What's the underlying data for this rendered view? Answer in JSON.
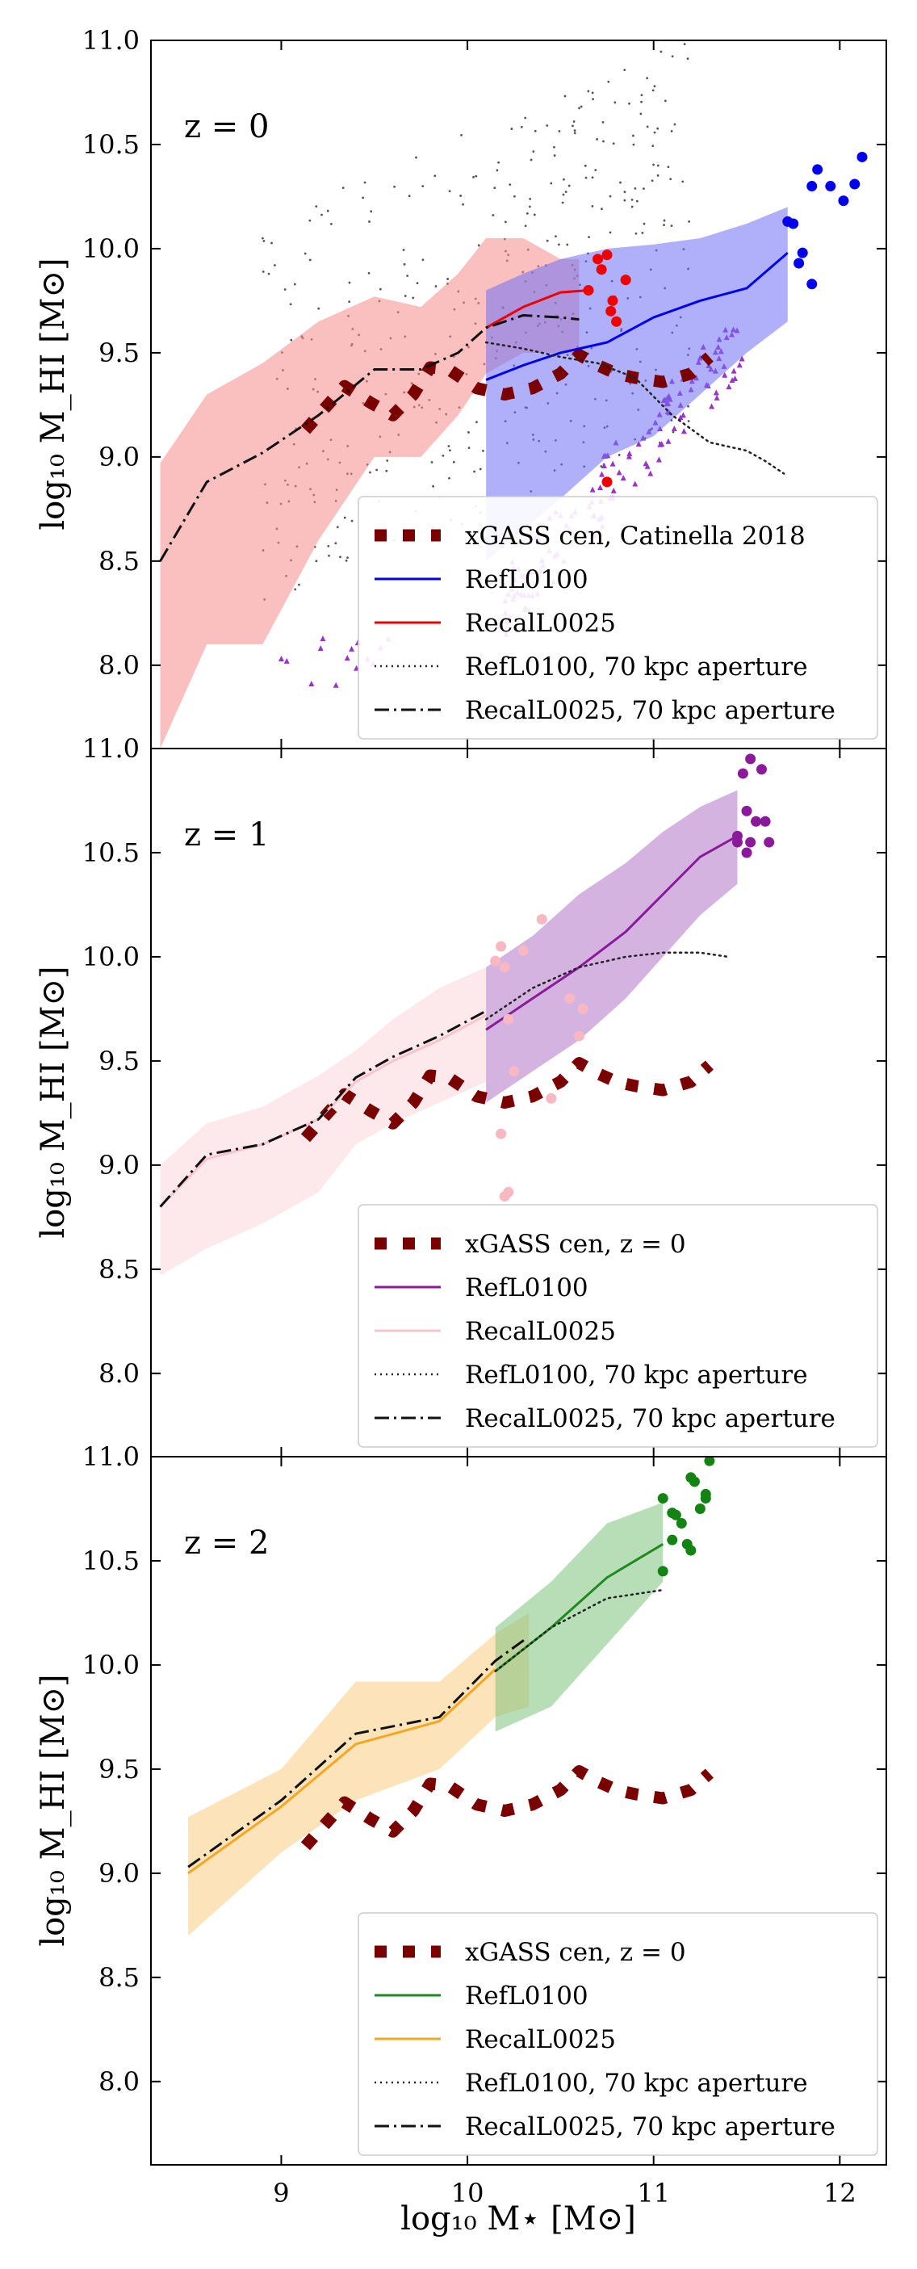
{
  "figure": {
    "xlabel": "log₁₀ M⋆ [M⊙]",
    "ylabel": "log₁₀ M_HI [M⊙]",
    "xlim": [
      8.3,
      12.25
    ],
    "ylim": [
      7.6,
      11.0
    ],
    "x_ticks": [
      9,
      10,
      11,
      12
    ],
    "y_ticks": [
      8.0,
      8.5,
      9.0,
      9.5,
      10.0,
      10.5,
      11.0
    ]
  },
  "chart_data": [
    {
      "type": "line",
      "panel_label": "z = 0",
      "xlabel": "",
      "ylabel": "log₁₀ M_HI [M⊙]",
      "xlim": [
        8.3,
        12.25
      ],
      "ylim": [
        7.6,
        11.0
      ],
      "legend_position": "bottom-right",
      "colors": {
        "ref": "#0000ee",
        "recal": "#ee0000",
        "ref_band": "#6f6ff5",
        "recal_band": "#f58a8a",
        "ref_points": "#0000ee",
        "recal_points": "#ee0000",
        "scatter_tri": "#9933cc"
      },
      "series": [
        {
          "name": "xGASS cen, Catinella 2018",
          "style": "xgass",
          "x": [
            9.13,
            9.24,
            9.34,
            9.48,
            9.6,
            9.71,
            9.8,
            9.9,
            10.05,
            10.2,
            10.35,
            10.5,
            10.6,
            10.7,
            10.8,
            10.9,
            11.05,
            11.2,
            11.3
          ],
          "y": [
            9.13,
            9.24,
            9.34,
            9.26,
            9.2,
            9.3,
            9.43,
            9.42,
            9.33,
            9.3,
            9.33,
            9.4,
            9.49,
            9.44,
            9.4,
            9.38,
            9.36,
            9.4,
            9.48
          ]
        },
        {
          "name": "RefL0100",
          "style": "ref",
          "x": [
            10.1,
            10.3,
            10.5,
            10.75,
            11.0,
            11.25,
            11.5,
            11.72
          ],
          "y": [
            9.37,
            9.44,
            9.5,
            9.55,
            9.67,
            9.75,
            9.81,
            9.98
          ]
        },
        {
          "name": "RecalL0025",
          "style": "recal",
          "x": [
            10.1,
            10.3,
            10.5,
            10.65
          ],
          "y": [
            9.62,
            9.72,
            9.79,
            9.8
          ]
        },
        {
          "name": "RefL0100, 70 kpc aperture",
          "style": "ref70",
          "x": [
            10.1,
            10.3,
            10.5,
            10.7,
            10.9,
            11.1,
            11.3,
            11.5,
            11.6,
            11.7
          ],
          "y": [
            9.55,
            9.52,
            9.48,
            9.45,
            9.38,
            9.2,
            9.07,
            9.03,
            8.98,
            8.92
          ]
        },
        {
          "name": "RecalL0025, 70 kpc aperture",
          "style": "recal70",
          "x": [
            8.35,
            8.6,
            8.9,
            9.2,
            9.5,
            9.75,
            9.95,
            10.1,
            10.3,
            10.5,
            10.6
          ],
          "y": [
            8.5,
            8.88,
            9.02,
            9.2,
            9.42,
            9.42,
            9.5,
            9.62,
            9.68,
            9.67,
            9.66
          ]
        }
      ],
      "bands": [
        {
          "name": "RecalL0025 band",
          "style": "recal",
          "x": [
            8.35,
            8.6,
            8.9,
            9.2,
            9.5,
            9.75,
            9.95,
            10.1,
            10.3,
            10.5,
            10.6
          ],
          "lower": [
            7.6,
            8.1,
            8.1,
            8.6,
            9.0,
            9.0,
            9.2,
            9.4,
            9.5,
            9.5,
            9.5
          ],
          "upper": [
            8.97,
            9.3,
            9.45,
            9.65,
            9.77,
            9.72,
            9.88,
            10.05,
            10.05,
            9.95,
            9.95
          ]
        },
        {
          "name": "RefL0100 band",
          "style": "ref",
          "x": [
            10.1,
            10.3,
            10.5,
            10.75,
            11.0,
            11.25,
            11.5,
            11.72
          ],
          "lower": [
            8.5,
            8.65,
            8.8,
            9.0,
            9.1,
            9.3,
            9.5,
            9.65
          ],
          "upper": [
            9.8,
            9.88,
            9.95,
            10.0,
            10.02,
            10.05,
            10.12,
            10.2
          ]
        }
      ],
      "points": [
        {
          "style": "ref",
          "x": [
            11.72,
            11.75,
            11.8,
            11.85,
            11.88,
            11.95,
            12.02,
            12.08,
            12.12,
            11.78,
            11.85
          ],
          "y": [
            10.13,
            10.12,
            9.98,
            10.3,
            10.38,
            10.3,
            10.23,
            10.31,
            10.44,
            9.93,
            9.83
          ]
        },
        {
          "style": "recal",
          "x": [
            10.65,
            10.7,
            10.75,
            10.78,
            10.8,
            10.72,
            10.85,
            10.77,
            10.75
          ],
          "y": [
            9.8,
            9.95,
            9.97,
            9.75,
            9.65,
            9.9,
            9.85,
            9.7,
            8.88
          ]
        }
      ]
    },
    {
      "type": "line",
      "panel_label": "z = 1",
      "xlabel": "",
      "ylabel": "log₁₀ M_HI [M⊙]",
      "xlim": [
        8.3,
        12.25
      ],
      "ylim": [
        7.6,
        11.0
      ],
      "legend_position": "bottom-right",
      "colors": {
        "ref": "#8b1a9b",
        "recal": "#f9c5cd",
        "ref_band": "#b074c8",
        "recal_band": "#fbd5dc",
        "ref_points": "#8b1a9b",
        "recal_points": "#f7b8c2"
      },
      "series": [
        {
          "name": "xGASS cen, z = 0",
          "style": "xgass",
          "x": [
            9.13,
            9.24,
            9.34,
            9.48,
            9.6,
            9.71,
            9.8,
            9.9,
            10.05,
            10.2,
            10.35,
            10.5,
            10.6,
            10.7,
            10.8,
            10.9,
            11.05,
            11.2,
            11.3
          ],
          "y": [
            9.13,
            9.24,
            9.34,
            9.26,
            9.2,
            9.3,
            9.43,
            9.42,
            9.33,
            9.3,
            9.33,
            9.4,
            9.49,
            9.44,
            9.4,
            9.38,
            9.36,
            9.4,
            9.48
          ]
        },
        {
          "name": "RefL0100",
          "style": "ref",
          "x": [
            10.1,
            10.35,
            10.6,
            10.85,
            11.05,
            11.25,
            11.45
          ],
          "y": [
            9.65,
            9.8,
            9.95,
            10.12,
            10.3,
            10.48,
            10.58
          ]
        },
        {
          "name": "RecalL0025",
          "style": "recal",
          "x": [
            8.35,
            8.6,
            8.9,
            9.2,
            9.4,
            9.6,
            9.85,
            10.1
          ],
          "y": [
            8.8,
            9.03,
            9.1,
            9.22,
            9.4,
            9.5,
            9.6,
            9.72
          ]
        },
        {
          "name": "RefL0100, 70 kpc aperture",
          "style": "ref70",
          "x": [
            10.1,
            10.35,
            10.6,
            10.85,
            11.05,
            11.25,
            11.4
          ],
          "y": [
            9.7,
            9.85,
            9.95,
            10.0,
            10.02,
            10.02,
            10.0
          ]
        },
        {
          "name": "RecalL0025, 70 kpc aperture",
          "style": "recal70",
          "x": [
            8.35,
            8.6,
            8.9,
            9.2,
            9.4,
            9.6,
            9.85,
            10.1
          ],
          "y": [
            8.8,
            9.05,
            9.1,
            9.22,
            9.42,
            9.52,
            9.62,
            9.74
          ]
        }
      ],
      "bands": [
        {
          "name": "RecalL0025 band",
          "style": "recal",
          "x": [
            8.35,
            8.6,
            8.9,
            9.2,
            9.4,
            9.6,
            9.85,
            10.1
          ],
          "lower": [
            8.47,
            8.6,
            8.72,
            8.87,
            9.1,
            9.2,
            9.3,
            9.4
          ],
          "upper": [
            9.0,
            9.2,
            9.28,
            9.43,
            9.55,
            9.7,
            9.85,
            9.95
          ]
        },
        {
          "name": "RefL0100 band",
          "style": "ref",
          "x": [
            10.1,
            10.35,
            10.6,
            10.85,
            11.05,
            11.25,
            11.45
          ],
          "lower": [
            9.3,
            9.45,
            9.6,
            9.8,
            10.0,
            10.2,
            10.35
          ],
          "upper": [
            9.95,
            10.1,
            10.3,
            10.45,
            10.6,
            10.72,
            10.8
          ]
        }
      ],
      "points": [
        {
          "style": "ref",
          "x": [
            11.45,
            11.5,
            11.55,
            11.48,
            11.52,
            11.58,
            11.6,
            11.52,
            11.62,
            11.5,
            11.45
          ],
          "y": [
            10.55,
            10.5,
            10.65,
            10.88,
            10.95,
            10.9,
            10.65,
            10.55,
            10.55,
            10.7,
            10.58
          ]
        },
        {
          "style": "recal",
          "x": [
            10.15,
            10.18,
            10.2,
            10.22,
            10.25,
            10.3,
            10.4,
            10.45,
            10.55,
            10.6,
            10.2,
            10.22,
            10.18,
            10.62
          ],
          "y": [
            9.98,
            10.05,
            9.95,
            9.7,
            9.45,
            10.03,
            10.18,
            9.32,
            9.8,
            9.62,
            8.85,
            8.87,
            9.15,
            9.75
          ]
        }
      ]
    },
    {
      "type": "line",
      "panel_label": "z = 2",
      "xlabel": "log₁₀ M⋆ [M⊙]",
      "ylabel": "log₁₀ M_HI [M⊙]",
      "xlim": [
        8.3,
        12.25
      ],
      "ylim": [
        7.6,
        11.0
      ],
      "legend_position": "bottom-right",
      "colors": {
        "ref": "#1f8a1f",
        "recal": "#f5a623",
        "ref_band": "#7ec27e",
        "recal_band": "#f9cc80",
        "ref_points": "#138413",
        "recal_points": "#f5a623"
      },
      "series": [
        {
          "name": "xGASS cen, z = 0",
          "style": "xgass",
          "x": [
            9.13,
            9.24,
            9.34,
            9.48,
            9.6,
            9.71,
            9.8,
            9.9,
            10.05,
            10.2,
            10.35,
            10.5,
            10.6,
            10.7,
            10.8,
            10.9,
            11.05,
            11.2,
            11.3
          ],
          "y": [
            9.13,
            9.24,
            9.34,
            9.26,
            9.2,
            9.3,
            9.43,
            9.42,
            9.33,
            9.3,
            9.33,
            9.4,
            9.49,
            9.44,
            9.4,
            9.38,
            9.36,
            9.4,
            9.48
          ]
        },
        {
          "name": "RefL0100",
          "style": "ref",
          "x": [
            10.15,
            10.45,
            10.75,
            11.05
          ],
          "y": [
            9.97,
            10.18,
            10.42,
            10.58
          ]
        },
        {
          "name": "RecalL0025",
          "style": "recal",
          "x": [
            8.5,
            9.0,
            9.4,
            9.85,
            10.15
          ],
          "y": [
            9.0,
            9.32,
            9.62,
            9.73,
            9.98
          ]
        },
        {
          "name": "RefL0100, 70 kpc aperture",
          "style": "ref70",
          "x": [
            10.15,
            10.45,
            10.75,
            11.05
          ],
          "y": [
            9.97,
            10.18,
            10.32,
            10.36
          ]
        },
        {
          "name": "RecalL0025, 70 kpc aperture",
          "style": "recal70",
          "x": [
            8.5,
            9.0,
            9.4,
            9.85,
            10.15,
            10.32
          ],
          "y": [
            9.03,
            9.35,
            9.67,
            9.75,
            10.02,
            10.13
          ]
        }
      ],
      "bands": [
        {
          "name": "RecalL0025 band",
          "style": "recal",
          "x": [
            8.5,
            9.0,
            9.4,
            9.85,
            10.15,
            10.33
          ],
          "lower": [
            8.7,
            9.1,
            9.35,
            9.5,
            9.75,
            9.8
          ],
          "upper": [
            9.27,
            9.5,
            9.92,
            9.92,
            10.15,
            10.25
          ]
        },
        {
          "name": "RefL0100 band",
          "style": "ref",
          "x": [
            10.15,
            10.45,
            10.75,
            11.05
          ],
          "lower": [
            9.68,
            9.8,
            10.1,
            10.4
          ],
          "upper": [
            10.18,
            10.4,
            10.68,
            10.78
          ]
        }
      ],
      "points": [
        {
          "style": "ref",
          "x": [
            11.05,
            11.1,
            11.15,
            11.2,
            11.22,
            11.28,
            11.3,
            11.18,
            11.1,
            11.25,
            11.05,
            11.12,
            11.2,
            11.28
          ],
          "y": [
            10.8,
            10.73,
            10.68,
            10.9,
            10.88,
            10.8,
            10.98,
            10.58,
            10.6,
            10.75,
            10.45,
            10.72,
            10.55,
            10.82
          ]
        }
      ]
    }
  ]
}
